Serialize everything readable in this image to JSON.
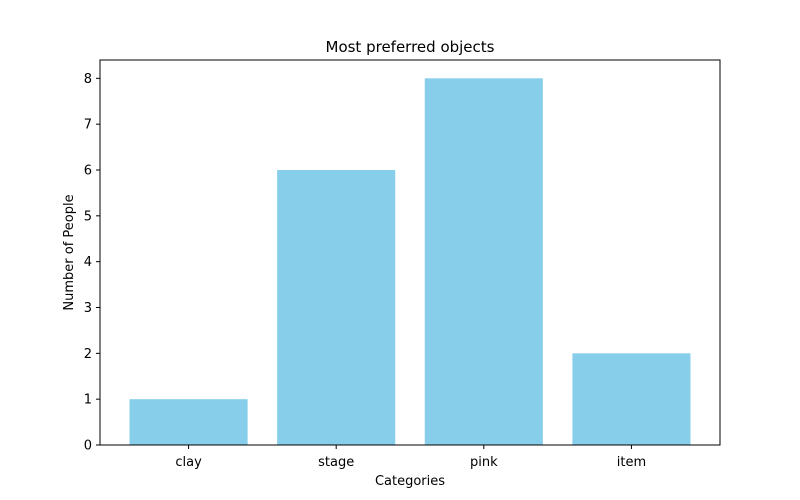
{
  "chart_data": {
    "type": "bar",
    "title": "Most preferred objects",
    "xlabel": "Categories",
    "ylabel": "Number of People",
    "categories": [
      "clay",
      "stage",
      "pink",
      "item"
    ],
    "values": [
      1,
      6,
      8,
      2
    ],
    "ylim": [
      0,
      8.4
    ],
    "yticks": [
      0,
      1,
      2,
      3,
      4,
      5,
      6,
      7,
      8
    ],
    "bar_color": "#87ceeb",
    "grid": false,
    "legend": "none"
  }
}
